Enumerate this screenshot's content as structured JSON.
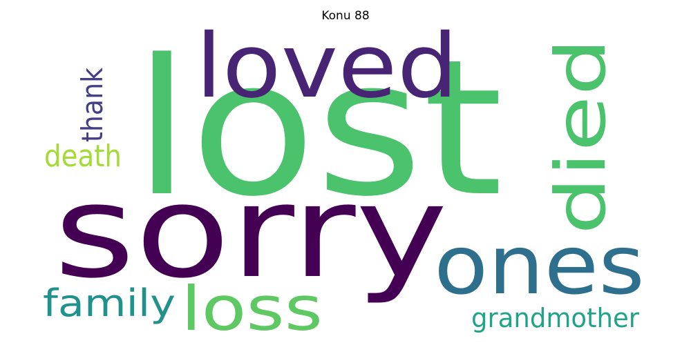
{
  "title": "Konu 88",
  "words": [
    {
      "text": "lost",
      "color": "#4bc26c"
    },
    {
      "text": "sorry",
      "color": "#440154"
    },
    {
      "text": "loved",
      "color": "#482474"
    },
    {
      "text": "died",
      "color": "#4bc26c"
    },
    {
      "text": "ones",
      "color": "#2e6f8e"
    },
    {
      "text": "loss",
      "color": "#5ec962"
    },
    {
      "text": "family",
      "color": "#21918c"
    },
    {
      "text": "grandmother",
      "color": "#20a386"
    },
    {
      "text": "death",
      "color": "#a5db36"
    },
    {
      "text": "thank",
      "color": "#433e85"
    }
  ]
}
